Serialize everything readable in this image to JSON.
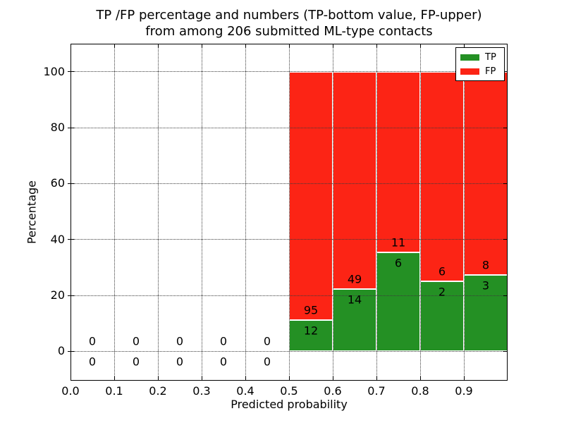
{
  "chart_data": {
    "type": "bar",
    "stacked": true,
    "title_lines": [
      "TP /FP percentage and numbers (TP-bottom value, FP-upper)",
      "from among 206 submitted ML-type contacts"
    ],
    "title": "TP /FP percentage and numbers (TP-bottom value, FP-upper) from among 206 submitted ML-type contacts",
    "xlabel": "Predicted probability",
    "ylabel": "Percentage",
    "xlim": [
      0.0,
      1.0
    ],
    "ylim": [
      -10.5,
      110
    ],
    "xtick_values": [
      0.0,
      0.1,
      0.2,
      0.3,
      0.4,
      0.5,
      0.6,
      0.7,
      0.8,
      0.9
    ],
    "xtick_labels": [
      "0.0",
      "0.1",
      "0.2",
      "0.3",
      "0.4",
      "0.5",
      "0.6",
      "0.7",
      "0.8",
      "0.9"
    ],
    "ytick_values": [
      0,
      20,
      40,
      60,
      80,
      100
    ],
    "ytick_labels": [
      "0",
      "20",
      "40",
      "60",
      "80",
      "100"
    ],
    "grid": "dotted",
    "grid_above_bars": true,
    "total_submitted": 206,
    "legend": {
      "position": "upper-right",
      "entries": [
        {
          "label": "TP",
          "color": "#249024"
        },
        {
          "label": "FP",
          "color": "#fc2415"
        }
      ]
    },
    "bins": [
      {
        "x0": 0.0,
        "x1": 0.1,
        "tp_count": 0,
        "fp_count": 0,
        "tp_pct": 0,
        "fp_pct": 0
      },
      {
        "x0": 0.1,
        "x1": 0.2,
        "tp_count": 0,
        "fp_count": 0,
        "tp_pct": 0,
        "fp_pct": 0
      },
      {
        "x0": 0.2,
        "x1": 0.3,
        "tp_count": 0,
        "fp_count": 0,
        "tp_pct": 0,
        "fp_pct": 0
      },
      {
        "x0": 0.3,
        "x1": 0.4,
        "tp_count": 0,
        "fp_count": 0,
        "tp_pct": 0,
        "fp_pct": 0
      },
      {
        "x0": 0.4,
        "x1": 0.5,
        "tp_count": 0,
        "fp_count": 0,
        "tp_pct": 0,
        "fp_pct": 0
      },
      {
        "x0": 0.5,
        "x1": 0.6,
        "tp_count": 12,
        "fp_count": 95,
        "tp_pct": 11.2,
        "fp_pct": 88.8
      },
      {
        "x0": 0.6,
        "x1": 0.7,
        "tp_count": 14,
        "fp_count": 49,
        "tp_pct": 22.2,
        "fp_pct": 77.8
      },
      {
        "x0": 0.7,
        "x1": 0.8,
        "tp_count": 6,
        "fp_count": 11,
        "tp_pct": 35.3,
        "fp_pct": 64.7
      },
      {
        "x0": 0.8,
        "x1": 0.9,
        "tp_count": 2,
        "fp_count": 6,
        "tp_pct": 25.0,
        "fp_pct": 75.0
      },
      {
        "x0": 0.9,
        "x1": 1.0,
        "tp_count": 3,
        "fp_count": 8,
        "tp_pct": 27.3,
        "fp_pct": 72.7
      }
    ],
    "colors": {
      "tp": "#249024",
      "fp": "#fc2415",
      "bar_edge": "#ffffff",
      "grid": "#3a3a3a",
      "text": "#000000",
      "spine": "#000000"
    }
  }
}
